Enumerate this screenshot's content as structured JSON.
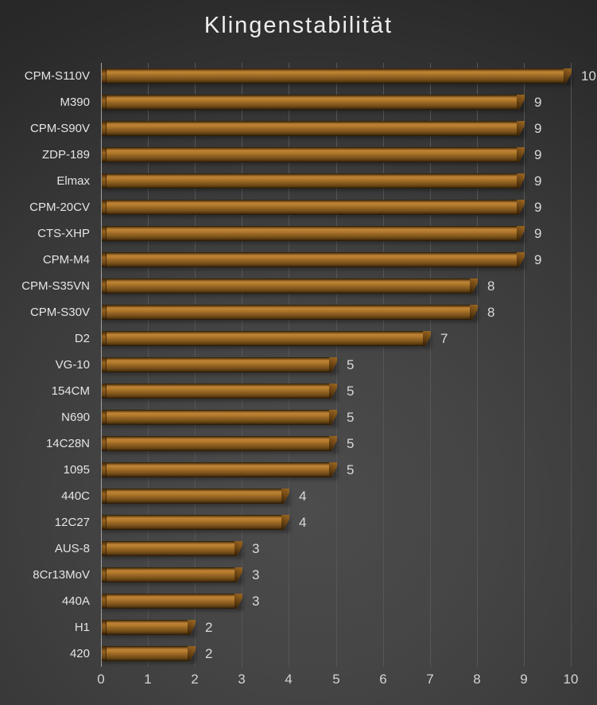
{
  "title": "Klingenstabilität",
  "chart_data": {
    "type": "bar",
    "orientation": "horizontal",
    "title": "Klingenstabilität",
    "xlabel": "",
    "ylabel": "",
    "xlim": [
      0,
      10
    ],
    "xticks": [
      0,
      1,
      2,
      3,
      4,
      5,
      6,
      7,
      8,
      9,
      10
    ],
    "grid": "vertical",
    "legend": "none",
    "data_labels": "end-of-bar",
    "categories": [
      "CPM-S110V",
      "M390",
      "CPM-S90V",
      "ZDP-189",
      "Elmax",
      "CPM-20CV",
      "CTS-XHP",
      "CPM-M4",
      "CPM-S35VN",
      "CPM-S30V",
      "D2",
      "VG-10",
      "154CM",
      "N690",
      "14C28N",
      "1095",
      "440C",
      "12C27",
      "AUS-8",
      "8Cr13MoV",
      "440A",
      "H1",
      "420"
    ],
    "values": [
      10,
      9,
      9,
      9,
      9,
      9,
      9,
      9,
      8,
      8,
      7,
      5,
      5,
      5,
      5,
      5,
      4,
      4,
      3,
      3,
      3,
      2,
      2
    ]
  },
  "colors": {
    "bar_base": "#a5691f",
    "bar_highlight": "#c08338",
    "bar_shadow_edge": "#241706",
    "background_center": "#4c4c4c",
    "background_edge": "#232323",
    "gridline": "#565656",
    "axis_line": "#a4a4a4",
    "title_text": "#ededed",
    "label_text": "#e4e4e4",
    "value_text": "#d9d9d9"
  }
}
